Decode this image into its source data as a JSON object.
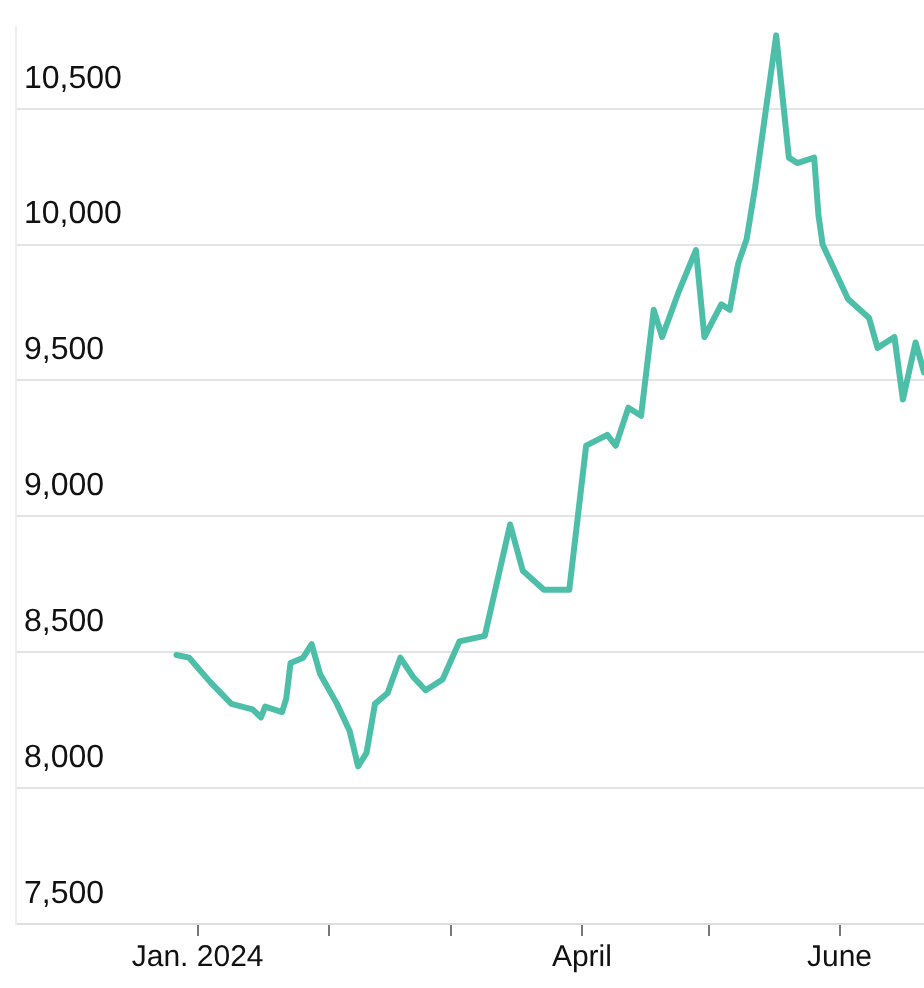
{
  "chart_data": {
    "type": "line",
    "x": [
      "2023-12-27",
      "2023-12-30",
      "2024-01-04",
      "2024-01-09",
      "2024-01-14",
      "2024-01-16",
      "2024-01-17",
      "2024-01-21",
      "2024-01-22",
      "2024-01-23",
      "2024-01-26",
      "2024-01-28",
      "2024-01-30",
      "2024-02-03",
      "2024-02-06",
      "2024-02-08",
      "2024-02-10",
      "2024-02-12",
      "2024-02-15",
      "2024-02-18",
      "2024-02-21",
      "2024-02-24",
      "2024-02-28",
      "2024-03-03",
      "2024-03-09",
      "2024-03-15",
      "2024-03-18",
      "2024-03-23",
      "2024-03-29",
      "2024-04-02",
      "2024-04-07",
      "2024-04-09",
      "2024-04-12",
      "2024-04-15",
      "2024-04-18",
      "2024-04-20",
      "2024-04-24",
      "2024-04-28",
      "2024-04-30",
      "2024-05-04",
      "2024-05-06",
      "2024-05-08",
      "2024-05-10",
      "2024-05-12",
      "2024-05-17",
      "2024-05-20",
      "2024-05-22",
      "2024-05-26",
      "2024-05-27",
      "2024-05-28",
      "2024-06-03",
      "2024-06-08",
      "2024-06-10",
      "2024-06-14",
      "2024-06-16",
      "2024-06-19",
      "2024-06-21"
    ],
    "series": [
      {
        "color": "#4dbfa8",
        "values": [
          8490,
          8480,
          8390,
          8310,
          8290,
          8260,
          8300,
          8280,
          8330,
          8460,
          8480,
          8530,
          8420,
          8310,
          8210,
          8080,
          8130,
          8310,
          8350,
          8480,
          8410,
          8360,
          8400,
          8540,
          8560,
          8970,
          8800,
          8730,
          8730,
          9260,
          9300,
          9260,
          9400,
          9370,
          9760,
          9660,
          9830,
          9980,
          9660,
          9780,
          9760,
          9930,
          10020,
          10210,
          10770,
          10320,
          10300,
          10320,
          10110,
          10000,
          9800,
          9730,
          9620,
          9660,
          9430,
          9640,
          9530
        ]
      }
    ],
    "xlim": [
      "2023-11-19",
      "2024-06-21"
    ],
    "xticks": [
      {
        "value": "2024-01-01",
        "label": "Jan. 2024"
      },
      {
        "value": "2024-02-01",
        "label": null
      },
      {
        "value": "2024-03-01",
        "label": null
      },
      {
        "value": "2024-04-01",
        "label": "April"
      },
      {
        "value": "2024-05-01",
        "label": null
      },
      {
        "value": "2024-06-01",
        "label": "June"
      }
    ],
    "ylim": [
      7500,
      10800
    ],
    "yticks": [
      {
        "value": 7500,
        "label": "7,500"
      },
      {
        "value": 8000,
        "label": "8,000"
      },
      {
        "value": 8500,
        "label": "8,500"
      },
      {
        "value": 9000,
        "label": "9,000"
      },
      {
        "value": 9500,
        "label": "9,500"
      },
      {
        "value": 10000,
        "label": "10,000"
      },
      {
        "value": 10500,
        "label": "10,500"
      }
    ],
    "grid": "y",
    "legend": false,
    "marker": "none",
    "line_style": "solid"
  }
}
